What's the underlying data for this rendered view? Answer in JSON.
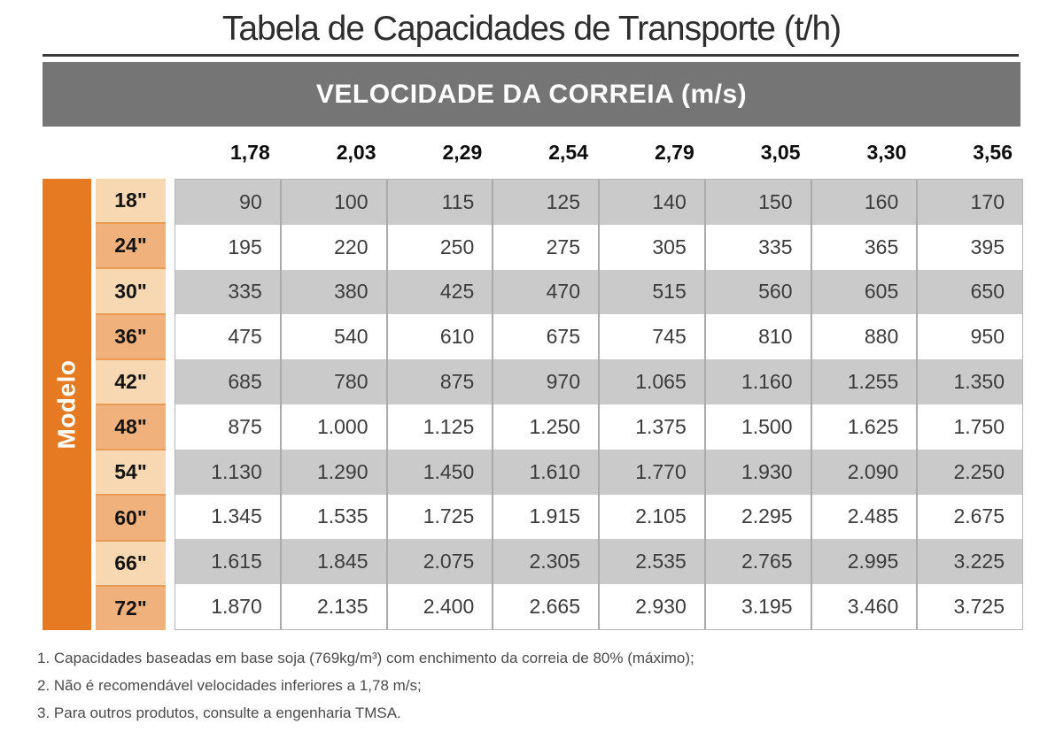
{
  "title": "Tabela de Capacidades de Transporte (t/h)",
  "table": {
    "header": "VELOCIDADE DA CORREIA (m/s)",
    "side_label": "Modelo",
    "speeds": [
      "1,78",
      "2,03",
      "2,29",
      "2,54",
      "2,79",
      "3,05",
      "3,30",
      "3,56"
    ],
    "rows": [
      {
        "model": "18\"",
        "values": [
          "90",
          "100",
          "115",
          "125",
          "140",
          "150",
          "160",
          "170"
        ]
      },
      {
        "model": "24\"",
        "values": [
          "195",
          "220",
          "250",
          "275",
          "305",
          "335",
          "365",
          "395"
        ]
      },
      {
        "model": "30\"",
        "values": [
          "335",
          "380",
          "425",
          "470",
          "515",
          "560",
          "605",
          "650"
        ]
      },
      {
        "model": "36\"",
        "values": [
          "475",
          "540",
          "610",
          "675",
          "745",
          "810",
          "880",
          "950"
        ]
      },
      {
        "model": "42\"",
        "values": [
          "685",
          "780",
          "875",
          "970",
          "1.065",
          "1.160",
          "1.255",
          "1.350"
        ]
      },
      {
        "model": "48\"",
        "values": [
          "875",
          "1.000",
          "1.125",
          "1.250",
          "1.375",
          "1.500",
          "1.625",
          "1.750"
        ]
      },
      {
        "model": "54\"",
        "values": [
          "1.130",
          "1.290",
          "1.450",
          "1.610",
          "1.770",
          "1.930",
          "2.090",
          "2.250"
        ]
      },
      {
        "model": "60\"",
        "values": [
          "1.345",
          "1.535",
          "1.725",
          "1.915",
          "2.105",
          "2.295",
          "2.485",
          "2.675"
        ]
      },
      {
        "model": "66\"",
        "values": [
          "1.615",
          "1.845",
          "2.075",
          "2.305",
          "2.535",
          "2.765",
          "2.995",
          "3.225"
        ]
      },
      {
        "model": "72\"",
        "values": [
          "1.870",
          "2.135",
          "2.400",
          "2.665",
          "2.930",
          "3.195",
          "3.460",
          "3.725"
        ]
      }
    ]
  },
  "notes": [
    "1. Capacidades baseadas em base soja (769kg/m³) com enchimento da correia de 80% (máximo);",
    "2. Não é recomendável velocidades inferiores a 1,78 m/s;",
    "3. Para outros produtos, consulte a engenharia TMSA."
  ],
  "colors": {
    "orange": "#E67A22",
    "peach_light": "#F8D7B3",
    "peach_dark": "#F1B17C",
    "model_divider": "#E89B55",
    "row_gray": "#CACACA",
    "header_gray": "#757575",
    "separator": "#ABABAB",
    "rule": "#3A3A3A",
    "title_text": "#2E2E2E",
    "value_text": "#3C3C3C",
    "note_text": "#4A4A4A"
  }
}
